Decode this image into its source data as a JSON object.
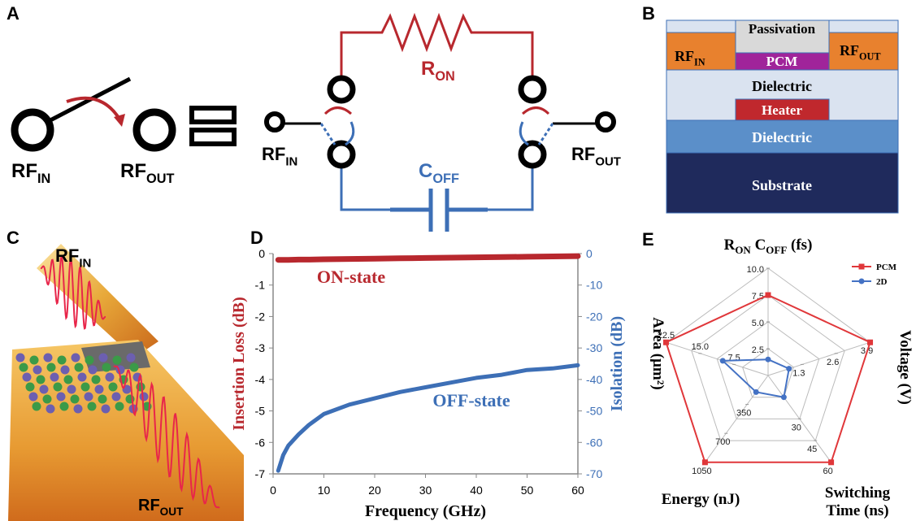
{
  "panel_labels": [
    "A",
    "B",
    "C",
    "D",
    "E"
  ],
  "panel_a": {
    "switch_in": {
      "main": "RF",
      "sub": "IN"
    },
    "switch_out": {
      "main": "RF",
      "sub": "OUT"
    },
    "r_on": {
      "main": "R",
      "sub": "ON"
    },
    "c_off": {
      "main": "C",
      "sub": "OFF"
    },
    "circuit_in": {
      "main": "RF",
      "sub": "IN"
    },
    "circuit_out": {
      "main": "RF",
      "sub": "OUT"
    }
  },
  "panel_b": {
    "passivation": "Passivation",
    "rf_in": {
      "main": "RF",
      "sub": "IN"
    },
    "pcm": "PCM",
    "rf_out": {
      "main": "RF",
      "sub": "OUT"
    },
    "dielectric_top": "Dielectric",
    "heater": "Heater",
    "dielectric_bottom": "Dielectric",
    "substrate": "Substrate"
  },
  "panel_c": {
    "rf_in": {
      "main": "RF",
      "sub": "IN"
    },
    "rf_out": {
      "main": "RF",
      "sub": "OUT"
    }
  },
  "chart_data": [
    {
      "type": "line",
      "x_label": "Frequency (GHz)",
      "y_label": "Insertion Loss (dB)",
      "y2_label": "Isolation (dB)",
      "x": [
        1,
        2,
        3,
        5,
        7,
        10,
        15,
        20,
        25,
        30,
        35,
        40,
        45,
        50,
        55,
        60
      ],
      "xlim": [
        0,
        60
      ],
      "xticks": [
        0,
        10,
        20,
        30,
        40,
        50,
        60
      ],
      "ylim": [
        -7,
        0
      ],
      "yticks": [
        0,
        -1,
        -2,
        -3,
        -4,
        -5,
        -6,
        -7
      ],
      "y2lim": [
        -70,
        0
      ],
      "y2ticks": [
        0,
        -10,
        -20,
        -30,
        -40,
        -50,
        -60,
        -70
      ],
      "series": [
        {
          "name": "ON-state",
          "color": "#b8282e",
          "values": [
            -0.2,
            -0.2,
            -0.2,
            -0.19,
            -0.19,
            -0.18,
            -0.17,
            -0.16,
            -0.15,
            -0.14,
            -0.13,
            -0.12,
            -0.11,
            -0.1,
            -0.09,
            -0.08
          ]
        },
        {
          "name": "OFF-state",
          "color": "#3d6fb6",
          "axis": "y2",
          "values": [
            -69,
            -64,
            -61,
            -57.5,
            -54.5,
            -51,
            -48,
            -46,
            -44,
            -42.5,
            -41,
            -39.5,
            -38.5,
            -37,
            -36.5,
            -35.5
          ]
        }
      ]
    },
    {
      "type": "radar",
      "legend": "top-right",
      "axes": [
        {
          "label": [
            {
              "t": "R"
            },
            {
              "t": "ON",
              "sub": true
            },
            {
              "t": " C"
            },
            {
              "t": "OFF",
              "sub": true
            },
            {
              "t": " (fs)"
            }
          ],
          "lim": [
            0,
            10
          ],
          "ticks": [
            2.5,
            {
              "value": 5,
              "label": "5.0"
            },
            7.5,
            {
              "value": 10,
              "label": "10.0"
            }
          ]
        },
        {
          "label": [
            {
              "t": "Voltage (V)"
            }
          ],
          "lim": [
            0,
            3.9
          ],
          "ticks": [
            1.3,
            2.6,
            3.9
          ]
        },
        {
          "label": [
            {
              "t": "Switching"
            },
            {
              "t": "Time (ns)",
              "newline": true
            }
          ],
          "lim": [
            0,
            60
          ],
          "ticks": [
            30,
            45,
            60
          ]
        },
        {
          "label": [
            {
              "t": "Energy (nJ)"
            }
          ],
          "lim": [
            0,
            1050
          ],
          "ticks": [
            350,
            700,
            1050
          ]
        },
        {
          "label": [
            {
              "t": "Area (μm²)"
            }
          ],
          "lim": [
            0,
            22.5
          ],
          "ticks": [
            7.5,
            {
              "value": 15,
              "label": "15.0"
            },
            22.5
          ]
        }
      ],
      "series": [
        {
          "name": "PCM",
          "color": "#e0373a",
          "marker": "square",
          "values": [
            7.5,
            3.9,
            60,
            1050,
            22.5
          ]
        },
        {
          "name": "2D",
          "color": "#4472c4",
          "marker": "circle",
          "values": [
            1.5,
            0.8,
            15,
            200,
            10
          ]
        }
      ]
    }
  ]
}
